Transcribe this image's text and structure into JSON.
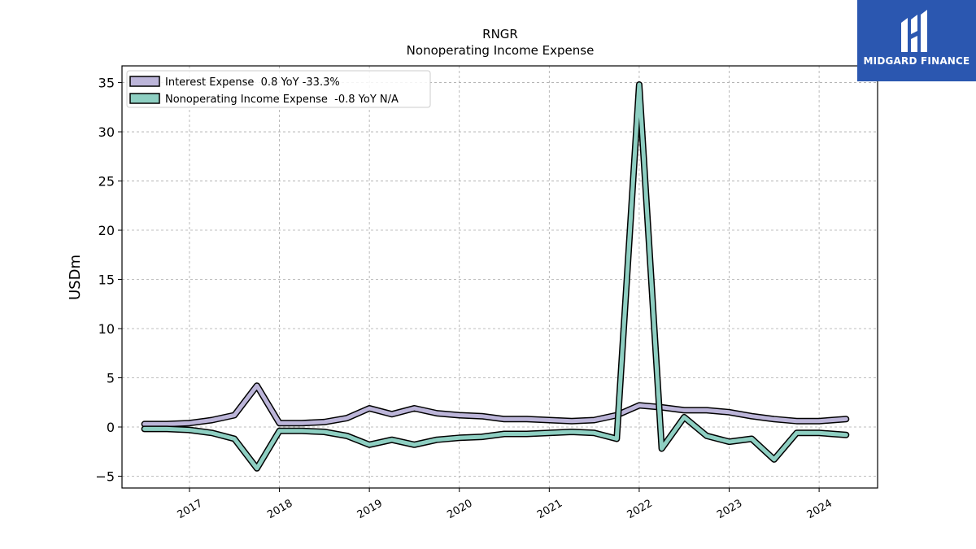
{
  "chart_data": {
    "type": "line",
    "title": "RNGR",
    "subtitle": "Nonoperating Income Expense",
    "xlabel": "",
    "ylabel": "USDm",
    "xlim": [
      2016.25,
      2024.65
    ],
    "ylim": [
      -6.2,
      36.7
    ],
    "yticks": [
      -5,
      0,
      5,
      10,
      15,
      20,
      25,
      30,
      35
    ],
    "xticks": [
      2017,
      2018,
      2019,
      2020,
      2021,
      2022,
      2023,
      2024
    ],
    "grid": true,
    "legend_position": "top-left",
    "x": [
      2016.5,
      2016.75,
      2017.0,
      2017.25,
      2017.5,
      2017.75,
      2018.0,
      2018.25,
      2018.5,
      2018.75,
      2019.0,
      2019.25,
      2019.5,
      2019.75,
      2020.0,
      2020.25,
      2020.5,
      2020.75,
      2021.0,
      2021.25,
      2021.5,
      2021.75,
      2022.0,
      2022.25,
      2022.5,
      2022.75,
      2023.0,
      2023.25,
      2023.5,
      2023.75,
      2024.0,
      2024.3
    ],
    "series": [
      {
        "name": "Interest Expense  0.8 YoY -33.3%",
        "color": "#bcb5d9",
        "values": [
          0.3,
          0.3,
          0.4,
          0.7,
          1.2,
          4.2,
          0.4,
          0.4,
          0.5,
          0.9,
          1.9,
          1.3,
          1.9,
          1.4,
          1.2,
          1.1,
          0.8,
          0.8,
          0.7,
          0.6,
          0.7,
          1.2,
          2.2,
          2.0,
          1.7,
          1.7,
          1.5,
          1.1,
          0.8,
          0.6,
          0.6,
          0.8
        ]
      },
      {
        "name": "Nonoperating Income Expense  -0.8 YoY N/A",
        "color": "#8ecfc2",
        "values": [
          -0.2,
          -0.2,
          -0.3,
          -0.6,
          -1.2,
          -4.2,
          -0.4,
          -0.4,
          -0.5,
          -0.9,
          -1.8,
          -1.3,
          -1.8,
          -1.3,
          -1.1,
          -1.0,
          -0.7,
          -0.7,
          -0.6,
          -0.5,
          -0.6,
          -1.2,
          34.8,
          -2.2,
          1.0,
          -0.9,
          -1.5,
          -1.2,
          -3.3,
          -0.6,
          -0.6,
          -0.8
        ]
      }
    ]
  },
  "logo": {
    "text": "MIDGARD FINANCE"
  }
}
